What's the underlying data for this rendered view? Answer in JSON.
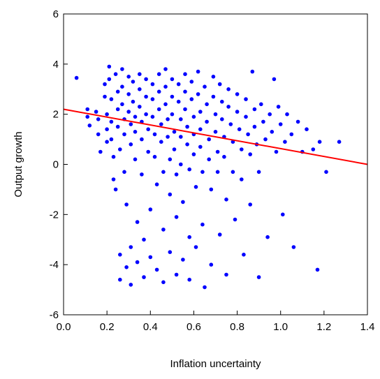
{
  "chart_data": {
    "type": "scatter",
    "title": "",
    "xlabel": "Inflation uncertainty",
    "ylabel": "Output growth",
    "xlim": [
      0.0,
      1.4
    ],
    "ylim": [
      -6,
      6
    ],
    "x_ticks": [
      "0.0",
      "0.2",
      "0.4",
      "0.6",
      "0.8",
      "1.0",
      "1.2",
      "1.4"
    ],
    "y_ticks": [
      "-6",
      "-4",
      "-2",
      "0",
      "2",
      "4",
      "6"
    ],
    "grid": false,
    "legend": "none",
    "series": [
      {
        "marker_color": "#0000ff",
        "points": [
          [
            0.06,
            3.45
          ],
          [
            0.11,
            2.2
          ],
          [
            0.11,
            1.9
          ],
          [
            0.12,
            1.55
          ],
          [
            0.15,
            2.1
          ],
          [
            0.16,
            1.8
          ],
          [
            0.16,
            1.2
          ],
          [
            0.17,
            0.5
          ],
          [
            0.19,
            3.2
          ],
          [
            0.19,
            2.7
          ],
          [
            0.2,
            2.0
          ],
          [
            0.2,
            1.4
          ],
          [
            0.2,
            0.9
          ],
          [
            0.21,
            3.9
          ],
          [
            0.21,
            3.4
          ],
          [
            0.22,
            2.6
          ],
          [
            0.22,
            1.7
          ],
          [
            0.22,
            1.0
          ],
          [
            0.23,
            0.3
          ],
          [
            0.23,
            -0.6
          ],
          [
            0.24,
            -1.0
          ],
          [
            0.24,
            3.6
          ],
          [
            0.25,
            2.9
          ],
          [
            0.25,
            2.2
          ],
          [
            0.25,
            1.5
          ],
          [
            0.26,
            0.6
          ],
          [
            0.26,
            -3.6
          ],
          [
            0.26,
            -4.6
          ],
          [
            0.27,
            3.8
          ],
          [
            0.27,
            3.1
          ],
          [
            0.27,
            2.4
          ],
          [
            0.28,
            1.8
          ],
          [
            0.28,
            1.2
          ],
          [
            0.28,
            -0.3
          ],
          [
            0.29,
            -1.6
          ],
          [
            0.29,
            -4.1
          ],
          [
            0.3,
            3.5
          ],
          [
            0.3,
            2.8
          ],
          [
            0.3,
            2.1
          ],
          [
            0.31,
            1.6
          ],
          [
            0.31,
            0.8
          ],
          [
            0.31,
            -3.3
          ],
          [
            0.31,
            -4.8
          ],
          [
            0.32,
            3.3
          ],
          [
            0.32,
            2.5
          ],
          [
            0.33,
            1.9
          ],
          [
            0.33,
            1.3
          ],
          [
            0.33,
            0.2
          ],
          [
            0.34,
            -2.3
          ],
          [
            0.34,
            -3.9
          ],
          [
            0.35,
            3.6
          ],
          [
            0.35,
            3.0
          ],
          [
            0.35,
            2.3
          ],
          [
            0.36,
            1.7
          ],
          [
            0.36,
            1.0
          ],
          [
            0.36,
            -0.4
          ],
          [
            0.37,
            -3.0
          ],
          [
            0.37,
            -4.5
          ],
          [
            0.38,
            3.4
          ],
          [
            0.38,
            2.7
          ],
          [
            0.38,
            2.0
          ],
          [
            0.39,
            1.4
          ],
          [
            0.39,
            0.5
          ],
          [
            0.4,
            -1.8
          ],
          [
            0.4,
            -3.7
          ],
          [
            0.41,
            3.2
          ],
          [
            0.41,
            2.6
          ],
          [
            0.41,
            1.9
          ],
          [
            0.42,
            1.2
          ],
          [
            0.42,
            0.3
          ],
          [
            0.43,
            -0.8
          ],
          [
            0.43,
            -4.2
          ],
          [
            0.44,
            3.6
          ],
          [
            0.44,
            2.9
          ],
          [
            0.44,
            2.2
          ],
          [
            0.45,
            1.6
          ],
          [
            0.45,
            0.9
          ],
          [
            0.46,
            -0.3
          ],
          [
            0.46,
            -2.6
          ],
          [
            0.46,
            -4.7
          ],
          [
            0.47,
            3.8
          ],
          [
            0.47,
            3.1
          ],
          [
            0.47,
            2.4
          ],
          [
            0.48,
            1.8
          ],
          [
            0.48,
            1.1
          ],
          [
            0.49,
            0.2
          ],
          [
            0.49,
            -1.2
          ],
          [
            0.49,
            -3.5
          ],
          [
            0.5,
            3.4
          ],
          [
            0.5,
            2.7
          ],
          [
            0.5,
            2.0
          ],
          [
            0.51,
            1.3
          ],
          [
            0.51,
            0.6
          ],
          [
            0.52,
            -0.4
          ],
          [
            0.52,
            -2.1
          ],
          [
            0.52,
            -4.4
          ],
          [
            0.53,
            3.2
          ],
          [
            0.53,
            2.5
          ],
          [
            0.54,
            1.8
          ],
          [
            0.54,
            1.1
          ],
          [
            0.54,
            0.0
          ],
          [
            0.55,
            -1.5
          ],
          [
            0.55,
            -3.8
          ],
          [
            0.56,
            3.6
          ],
          [
            0.56,
            2.9
          ],
          [
            0.56,
            2.2
          ],
          [
            0.57,
            1.5
          ],
          [
            0.57,
            0.8
          ],
          [
            0.58,
            -0.2
          ],
          [
            0.58,
            -2.9
          ],
          [
            0.58,
            -4.6
          ],
          [
            0.59,
            3.3
          ],
          [
            0.59,
            2.6
          ],
          [
            0.6,
            1.9
          ],
          [
            0.6,
            1.2
          ],
          [
            0.6,
            0.4
          ],
          [
            0.61,
            -0.9
          ],
          [
            0.61,
            -3.3
          ],
          [
            0.62,
            3.7
          ],
          [
            0.62,
            2.8
          ],
          [
            0.63,
            2.1
          ],
          [
            0.63,
            1.4
          ],
          [
            0.63,
            0.7
          ],
          [
            0.64,
            -0.3
          ],
          [
            0.64,
            -2.4
          ],
          [
            0.65,
            -4.9
          ],
          [
            0.65,
            3.1
          ],
          [
            0.66,
            2.4
          ],
          [
            0.66,
            1.7
          ],
          [
            0.67,
            1.0
          ],
          [
            0.67,
            0.2
          ],
          [
            0.68,
            -1.0
          ],
          [
            0.68,
            -4.0
          ],
          [
            0.69,
            3.5
          ],
          [
            0.69,
            2.7
          ],
          [
            0.7,
            2.0
          ],
          [
            0.7,
            1.3
          ],
          [
            0.71,
            0.5
          ],
          [
            0.71,
            -0.3
          ],
          [
            0.72,
            -2.8
          ],
          [
            0.72,
            3.2
          ],
          [
            0.73,
            2.5
          ],
          [
            0.73,
            1.8
          ],
          [
            0.74,
            1.1
          ],
          [
            0.74,
            0.3
          ],
          [
            0.75,
            -1.4
          ],
          [
            0.75,
            -4.4
          ],
          [
            0.76,
            3.0
          ],
          [
            0.76,
            2.3
          ],
          [
            0.77,
            1.6
          ],
          [
            0.78,
            0.9
          ],
          [
            0.78,
            -0.3
          ],
          [
            0.79,
            -2.2
          ],
          [
            0.8,
            2.8
          ],
          [
            0.8,
            2.1
          ],
          [
            0.81,
            1.4
          ],
          [
            0.82,
            0.6
          ],
          [
            0.82,
            -0.6
          ],
          [
            0.83,
            -3.6
          ],
          [
            0.84,
            2.6
          ],
          [
            0.84,
            1.9
          ],
          [
            0.85,
            1.2
          ],
          [
            0.86,
            0.4
          ],
          [
            0.86,
            -1.6
          ],
          [
            0.87,
            3.7
          ],
          [
            0.88,
            2.2
          ],
          [
            0.88,
            1.5
          ],
          [
            0.89,
            0.8
          ],
          [
            0.9,
            -0.3
          ],
          [
            0.9,
            -4.5
          ],
          [
            0.91,
            2.4
          ],
          [
            0.92,
            1.7
          ],
          [
            0.93,
            1.0
          ],
          [
            0.94,
            -2.9
          ],
          [
            0.95,
            2.0
          ],
          [
            0.96,
            1.3
          ],
          [
            0.97,
            3.4
          ],
          [
            0.98,
            0.5
          ],
          [
            0.99,
            2.3
          ],
          [
            1.0,
            1.6
          ],
          [
            1.01,
            -2.0
          ],
          [
            1.02,
            0.9
          ],
          [
            1.03,
            2.0
          ],
          [
            1.05,
            1.2
          ],
          [
            1.06,
            -3.3
          ],
          [
            1.08,
            1.7
          ],
          [
            1.1,
            0.5
          ],
          [
            1.12,
            1.4
          ],
          [
            1.15,
            0.6
          ],
          [
            1.17,
            -4.2
          ],
          [
            1.18,
            0.9
          ],
          [
            1.21,
            -0.3
          ],
          [
            1.27,
            0.9
          ]
        ]
      },
      {
        "type": "line",
        "line_color": "#ff0000",
        "points": [
          [
            0.0,
            2.2
          ],
          [
            1.4,
            0.0
          ]
        ]
      }
    ]
  }
}
